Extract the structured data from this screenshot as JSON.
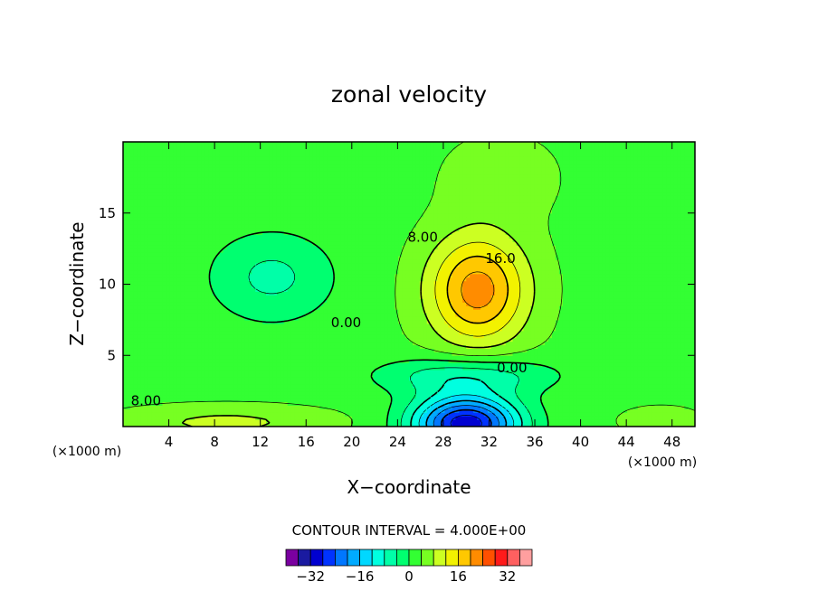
{
  "chart_data": {
    "type": "heatmap",
    "title": "zonal velocity",
    "xlabel": "X−coordinate",
    "ylabel": "Z−coordinate",
    "x_unit_left": "(×1000 m)",
    "x_unit_right": "(×1000 m)",
    "xlim": [
      0,
      50
    ],
    "ylim": [
      0,
      20
    ],
    "x_ticks": [
      "4",
      "8",
      "12",
      "16",
      "20",
      "24",
      "28",
      "32",
      "36",
      "40",
      "44",
      "48"
    ],
    "x_tick_values": [
      4,
      8,
      12,
      16,
      20,
      24,
      28,
      32,
      36,
      40,
      44,
      48
    ],
    "y_ticks": [
      "5",
      "10",
      "15"
    ],
    "y_tick_values": [
      5,
      10,
      15
    ],
    "contour_labels": [
      {
        "text": "8.00",
        "x": 2.0,
        "z": 1.5
      },
      {
        "text": "0.00",
        "x": 19.5,
        "z": 7.0
      },
      {
        "text": "8.00",
        "x": 26.2,
        "z": 13.0
      },
      {
        "text": "16.0",
        "x": 33.0,
        "z": 11.5
      },
      {
        "text": "0.00",
        "x": 34.0,
        "z": 3.8
      }
    ],
    "features": [
      {
        "name": "jet maximum",
        "x": 31,
        "z": 9,
        "approx_value": 24
      },
      {
        "name": "low-level minimum",
        "x": 30,
        "z": 0.5,
        "approx_value": -36
      }
    ],
    "contour_interval_text": "CONTOUR INTERVAL = 4.000E+00",
    "colorbar": {
      "levels": [
        -36,
        -32,
        -28,
        -24,
        -20,
        -16,
        -12,
        -8,
        -4,
        0,
        4,
        8,
        12,
        16,
        20,
        24,
        28,
        32,
        36
      ],
      "colors": [
        "#7a00a0",
        "#1a1aa0",
        "#0000d0",
        "#0033ff",
        "#0077ff",
        "#00aaff",
        "#00d8ff",
        "#00ffe0",
        "#00ffa8",
        "#00ff70",
        "#33ff33",
        "#77ff22",
        "#ccff22",
        "#f2f200",
        "#ffc800",
        "#ff8c00",
        "#ff5000",
        "#ff1a1a",
        "#ff6060",
        "#ff9f9f"
      ],
      "labels": [
        "−32",
        "−16",
        "0",
        "16",
        "32"
      ],
      "label_values": [
        -32,
        -16,
        0,
        16,
        32
      ]
    },
    "grid": false
  }
}
